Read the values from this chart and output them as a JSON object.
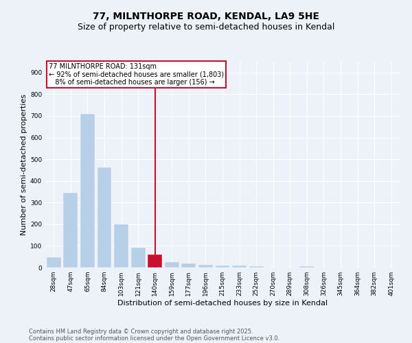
{
  "title": "77, MILNTHORPE ROAD, KENDAL, LA9 5HE",
  "subtitle": "Size of property relative to semi-detached houses in Kendal",
  "xlabel": "Distribution of semi-detached houses by size in Kendal",
  "ylabel": "Number of semi-detached properties",
  "bar_labels": [
    "28sqm",
    "47sqm",
    "65sqm",
    "84sqm",
    "103sqm",
    "121sqm",
    "140sqm",
    "159sqm",
    "177sqm",
    "196sqm",
    "215sqm",
    "233sqm",
    "252sqm",
    "270sqm",
    "289sqm",
    "308sqm",
    "326sqm",
    "345sqm",
    "364sqm",
    "382sqm",
    "401sqm"
  ],
  "bar_values": [
    47,
    344,
    710,
    462,
    200,
    93,
    60,
    26,
    19,
    14,
    10,
    10,
    7,
    0,
    0,
    5,
    0,
    0,
    0,
    0,
    0
  ],
  "highlight_bar_index": 6,
  "bar_color": "#b8cfe8",
  "highlight_color": "#c8102e",
  "vline_color": "#c8102e",
  "annotation_text": "77 MILNTHORPE ROAD: 131sqm\n← 92% of semi-detached houses are smaller (1,803)\n   8% of semi-detached houses are larger (156) →",
  "annotation_box_color": "#c8102e",
  "ylim": [
    0,
    950
  ],
  "yticks": [
    0,
    100,
    200,
    300,
    400,
    500,
    600,
    700,
    800,
    900
  ],
  "footer1": "Contains HM Land Registry data © Crown copyright and database right 2025.",
  "footer2": "Contains public sector information licensed under the Open Government Licence v3.0.",
  "bg_color": "#edf2f9",
  "plot_bg_color": "#edf2f9",
  "grid_color": "#ffffff",
  "title_fontsize": 10,
  "subtitle_fontsize": 9,
  "axis_label_fontsize": 8,
  "tick_fontsize": 6.5,
  "annotation_fontsize": 7,
  "footer_fontsize": 6
}
